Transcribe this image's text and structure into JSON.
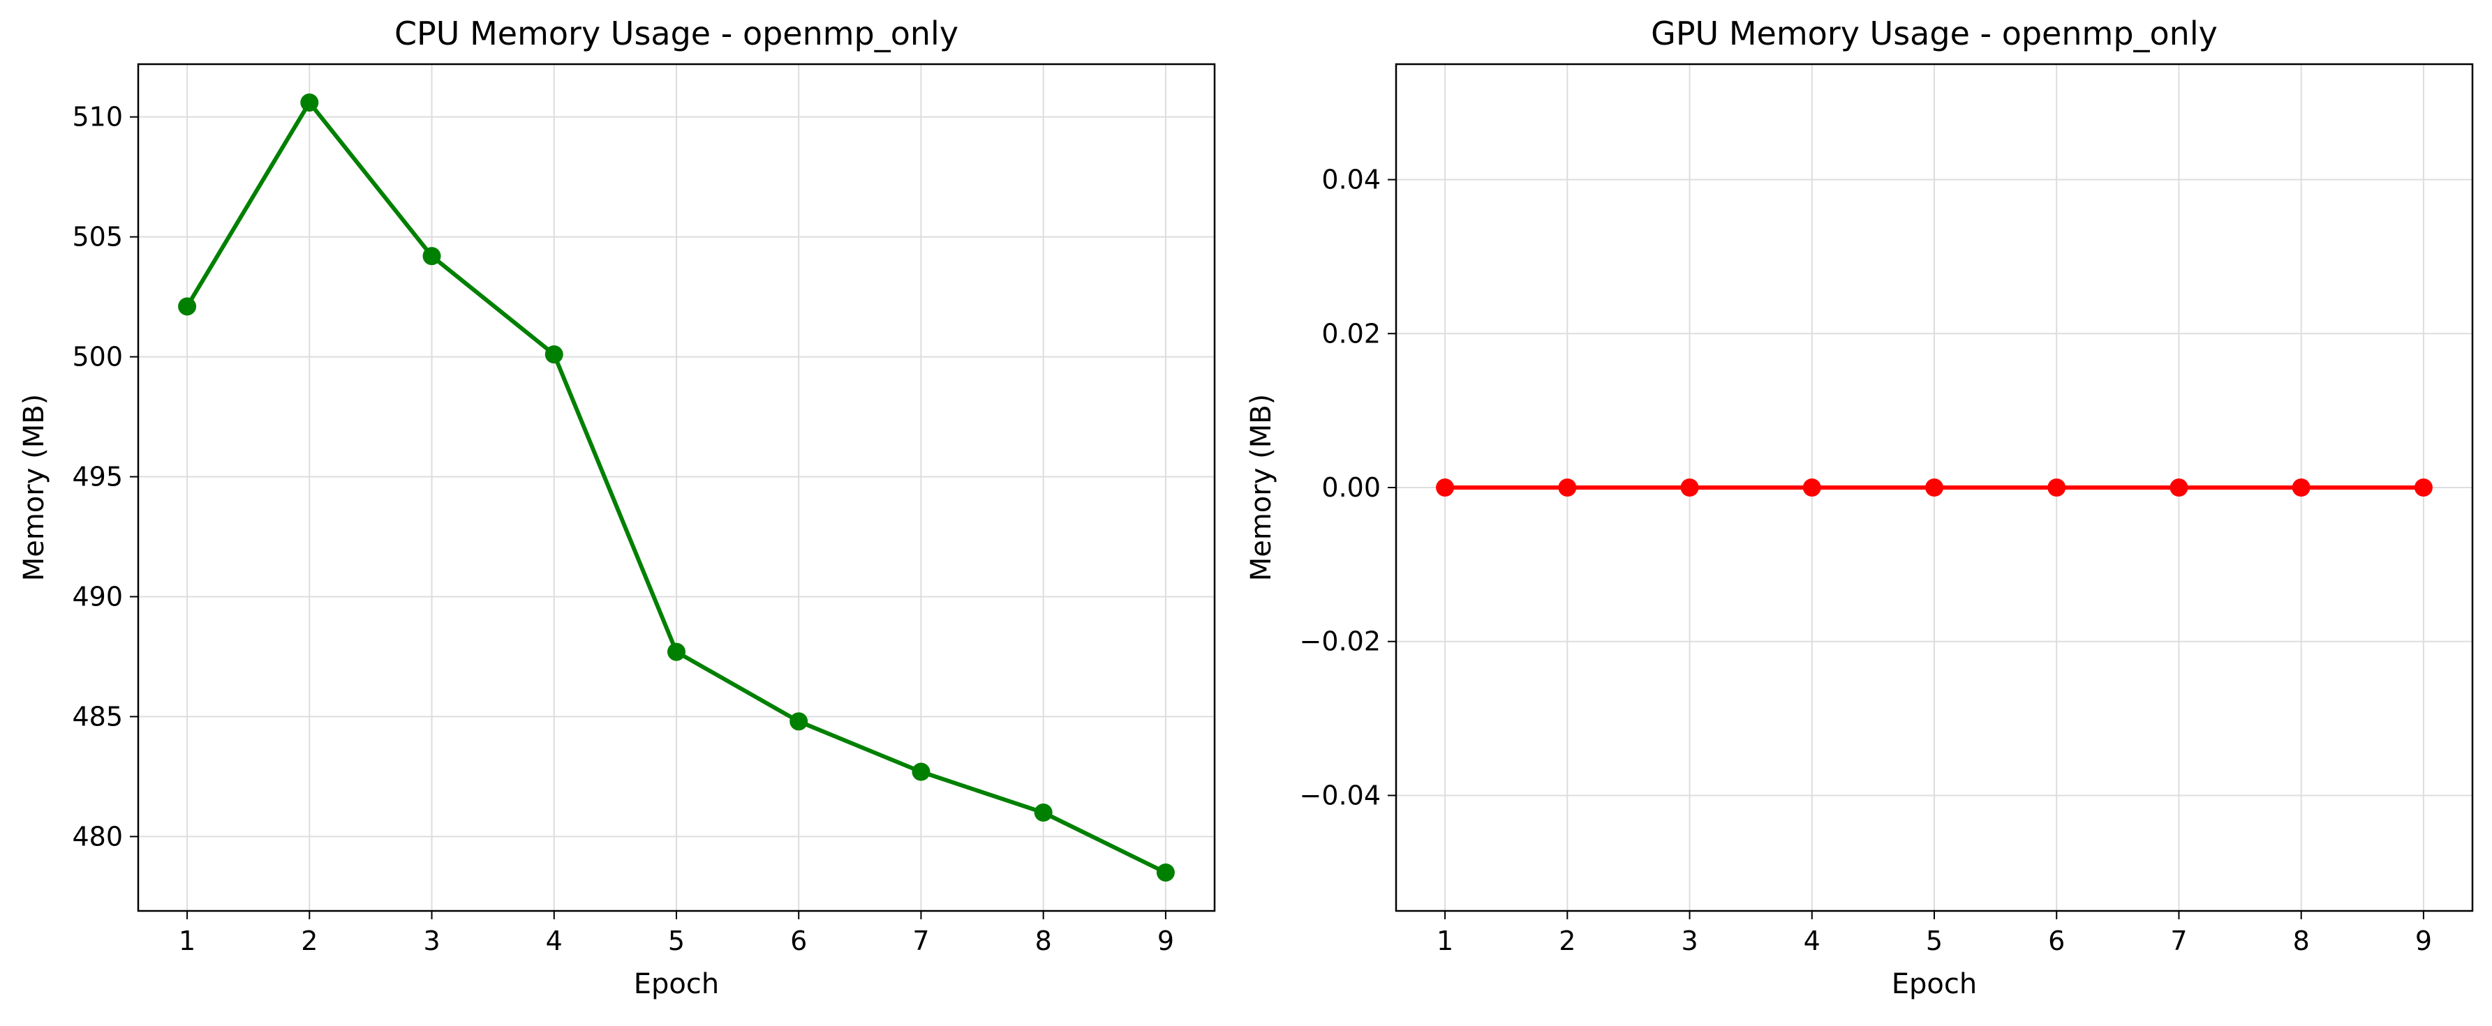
{
  "chart_data": [
    {
      "type": "line",
      "title": "CPU Memory Usage - openmp_only",
      "xlabel": "Epoch",
      "ylabel": "Memory (MB)",
      "x": [
        1,
        2,
        3,
        4,
        5,
        6,
        7,
        8,
        9
      ],
      "series": [
        {
          "values": [
            502.1,
            510.6,
            504.2,
            500.1,
            487.7,
            484.8,
            482.7,
            481.0,
            478.5
          ],
          "color": "#008000"
        }
      ],
      "xlim": [
        0.6,
        9.4
      ],
      "ylim": [
        476.9,
        512.2
      ],
      "xticks": [
        1,
        2,
        3,
        4,
        5,
        6,
        7,
        8,
        9
      ],
      "yticks": [
        480,
        485,
        490,
        495,
        500,
        505,
        510
      ],
      "ytick_labels": [
        "480",
        "485",
        "490",
        "495",
        "500",
        "505",
        "510"
      ],
      "grid": true,
      "marker": "circle"
    },
    {
      "type": "line",
      "title": "GPU Memory Usage - openmp_only",
      "xlabel": "Epoch",
      "ylabel": "Memory (MB)",
      "x": [
        1,
        2,
        3,
        4,
        5,
        6,
        7,
        8,
        9
      ],
      "series": [
        {
          "values": [
            0,
            0,
            0,
            0,
            0,
            0,
            0,
            0,
            0
          ],
          "color": "#ff0000"
        }
      ],
      "xlim": [
        0.6,
        9.4
      ],
      "ylim": [
        -0.055,
        0.055
      ],
      "xticks": [
        1,
        2,
        3,
        4,
        5,
        6,
        7,
        8,
        9
      ],
      "yticks": [
        -0.04,
        -0.02,
        0,
        0.02,
        0.04
      ],
      "ytick_labels": [
        "−0.04",
        "−0.02",
        "0.00",
        "0.02",
        "0.04"
      ],
      "grid": true,
      "marker": "circle"
    }
  ]
}
